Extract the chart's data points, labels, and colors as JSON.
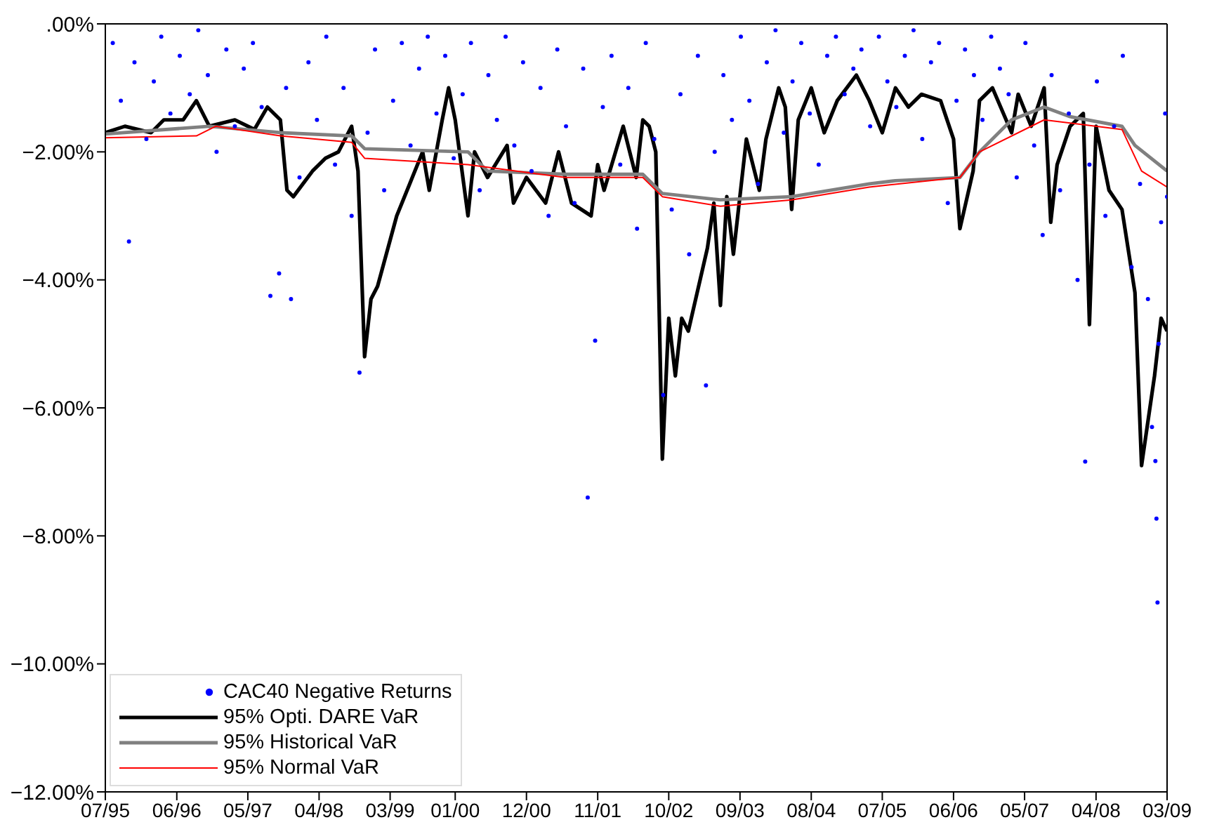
{
  "chart_data": {
    "type": "line",
    "xlim": [
      "1995-07",
      "2009-03"
    ],
    "xticks": [
      {
        "value": "1995-07",
        "label": "07/95"
      },
      {
        "value": "1996-06",
        "label": "06/96"
      },
      {
        "value": "1997-05",
        "label": "05/97"
      },
      {
        "value": "1998-04",
        "label": "04/98"
      },
      {
        "value": "1999-03",
        "label": "03/99"
      },
      {
        "value": "2000-01",
        "label": "01/00"
      },
      {
        "value": "2000-12",
        "label": "12/00"
      },
      {
        "value": "2001-11",
        "label": "11/01"
      },
      {
        "value": "2002-10",
        "label": "10/02"
      },
      {
        "value": "2003-09",
        "label": "09/03"
      },
      {
        "value": "2004-08",
        "label": "08/04"
      },
      {
        "value": "2005-07",
        "label": "07/05"
      },
      {
        "value": "2006-06",
        "label": "06/06"
      },
      {
        "value": "2007-05",
        "label": "05/07"
      },
      {
        "value": "2008-04",
        "label": "04/08"
      },
      {
        "value": "2009-03",
        "label": "03/09"
      }
    ],
    "ylim": [
      -12,
      0
    ],
    "yticks": [
      {
        "value": -12,
        "label": "−12.00%"
      },
      {
        "value": -10,
        "label": "−10.00%"
      },
      {
        "value": -8,
        "label": "−8.00%"
      },
      {
        "value": -6,
        "label": "−6.00%"
      },
      {
        "value": -4,
        "label": "−4.00%"
      },
      {
        "value": -2,
        "label": "−2.00%"
      },
      {
        "value": 0,
        "label": ".00%"
      }
    ],
    "grid": false,
    "legend": "bottom left",
    "series": [
      {
        "name": "CAC40 Negative Returns",
        "type": "scatter",
        "marker": "circle",
        "color": "#0000ff",
        "x": [
          "1995-08-05",
          "1995-09-12",
          "1995-10-20",
          "1995-11-15",
          "1996-01-10",
          "1996-02-14",
          "1996-03-20",
          "1996-05-02",
          "1996-06-15",
          "1996-08-01",
          "1996-09-10",
          "1996-10-25",
          "1996-12-05",
          "1997-01-20",
          "1997-03-01",
          "1997-04-12",
          "1997-05-25",
          "1997-07-05",
          "1997-08-15",
          "1997-09-25",
          "1997-10-28",
          "1997-11-20",
          "1997-12-30",
          "1998-02-10",
          "1998-03-22",
          "1998-05-05",
          "1998-06-15",
          "1998-07-25",
          "1998-09-01",
          "1998-10-08",
          "1998-11-15",
          "1998-12-20",
          "1999-02-01",
          "1999-03-15",
          "1999-04-25",
          "1999-06-05",
          "1999-07-15",
          "1999-08-25",
          "1999-10-05",
          "1999-11-15",
          "1999-12-25",
          "2000-02-05",
          "2000-03-15",
          "2000-04-25",
          "2000-06-05",
          "2000-07-15",
          "2000-08-25",
          "2000-10-05",
          "2000-11-15",
          "2000-12-25",
          "2001-02-05",
          "2001-03-15",
          "2001-04-25",
          "2001-06-05",
          "2001-07-15",
          "2001-08-25",
          "2001-09-15",
          "2001-10-20",
          "2001-11-25",
          "2002-01-05",
          "2002-02-15",
          "2002-03-25",
          "2002-05-05",
          "2002-06-15",
          "2002-07-25",
          "2002-09-05",
          "2002-10-15",
          "2002-11-25",
          "2003-01-05",
          "2003-02-15",
          "2003-03-25",
          "2003-05-05",
          "2003-06-15",
          "2003-07-25",
          "2003-09-05",
          "2003-10-15",
          "2003-11-25",
          "2004-01-05",
          "2004-02-15",
          "2004-03-25",
          "2004-05-05",
          "2004-06-15",
          "2004-07-25",
          "2004-09-05",
          "2004-10-15",
          "2004-11-25",
          "2005-01-05",
          "2005-02-15",
          "2005-03-25",
          "2005-05-05",
          "2005-06-15",
          "2005-07-25",
          "2005-09-05",
          "2005-10-15",
          "2005-11-25",
          "2006-01-05",
          "2006-02-15",
          "2006-03-25",
          "2006-05-05",
          "2006-06-15",
          "2006-07-25",
          "2006-09-05",
          "2006-10-15",
          "2006-11-25",
          "2007-01-05",
          "2007-02-15",
          "2007-03-25",
          "2007-05-05",
          "2007-06-15",
          "2007-07-25",
          "2007-09-05",
          "2007-10-15",
          "2007-11-25",
          "2008-01-05",
          "2008-02-10",
          "2008-03-01",
          "2008-04-05",
          "2008-05-15",
          "2008-06-25",
          "2008-08-05",
          "2008-09-15",
          "2008-10-25",
          "2008-12-01",
          "2008-12-20",
          "2009-01-05",
          "2009-01-10",
          "2009-01-15",
          "2009-01-20",
          "2009-02-01",
          "2009-02-20",
          "2009-03-01"
        ],
        "values": [
          -0.3,
          -1.2,
          -3.4,
          -0.6,
          -1.8,
          -0.9,
          -0.2,
          -1.4,
          -0.5,
          -1.1,
          -0.1,
          -0.8,
          -2.0,
          -0.4,
          -1.6,
          -0.7,
          -0.3,
          -1.3,
          -4.25,
          -3.9,
          -1.0,
          -4.3,
          -2.4,
          -0.6,
          -1.5,
          -0.2,
          -2.2,
          -1.0,
          -3.0,
          -5.45,
          -1.7,
          -0.4,
          -2.6,
          -1.2,
          -0.3,
          -1.9,
          -0.7,
          -0.2,
          -1.4,
          -0.5,
          -2.1,
          -1.1,
          -0.3,
          -2.6,
          -0.8,
          -1.5,
          -0.2,
          -1.9,
          -0.6,
          -2.3,
          -1.0,
          -3.0,
          -0.4,
          -1.6,
          -2.8,
          -0.7,
          -7.4,
          -4.95,
          -1.3,
          -0.5,
          -2.2,
          -1.0,
          -3.2,
          -0.3,
          -1.8,
          -5.8,
          -2.9,
          -1.1,
          -3.6,
          -0.5,
          -5.65,
          -2.0,
          -0.8,
          -1.5,
          -0.2,
          -1.2,
          -2.5,
          -0.6,
          -0.1,
          -1.7,
          -0.9,
          -0.3,
          -1.4,
          -2.2,
          -0.5,
          -0.2,
          -1.1,
          -0.7,
          -0.4,
          -1.6,
          -0.2,
          -0.9,
          -1.3,
          -0.5,
          -0.1,
          -1.8,
          -0.6,
          -0.3,
          -2.8,
          -1.2,
          -0.4,
          -0.8,
          -1.5,
          -0.2,
          -0.7,
          -1.1,
          -2.4,
          -0.3,
          -1.9,
          -3.3,
          -0.8,
          -2.6,
          -1.4,
          -4.0,
          -6.84,
          -2.2,
          -0.9,
          -3.0,
          -1.6,
          -0.5,
          -3.8,
          -2.5,
          -4.3,
          -6.3,
          -6.83,
          -7.73,
          -9.04,
          -5.0,
          -3.1,
          -1.4,
          -2.7
        ]
      },
      {
        "name": "95% Opti. DARE VaR",
        "color": "#000000",
        "x": [
          "1995-07",
          "1995-10",
          "1996-02",
          "1996-04",
          "1996-07",
          "1996-09",
          "1996-11",
          "1997-03",
          "1997-06",
          "1997-08",
          "1997-10",
          "1997-11",
          "1997-12",
          "1998-03",
          "1998-05",
          "1998-07",
          "1998-09",
          "1998-10",
          "1998-11",
          "1998-12",
          "1999-01",
          "1999-04",
          "1999-06",
          "1999-08",
          "1999-09",
          "1999-11",
          "1999-12",
          "2000-01",
          "2000-03",
          "2000-04",
          "2000-06",
          "2000-09",
          "2000-10",
          "2000-12",
          "2001-03",
          "2001-05",
          "2001-07",
          "2001-10",
          "2001-11",
          "2001-12",
          "2002-03",
          "2002-05",
          "2002-06",
          "2002-07",
          "2002-08",
          "2002-09",
          "2002-10",
          "2002-11",
          "2002-12",
          "2003-01",
          "2003-04",
          "2003-05",
          "2003-06",
          "2003-07",
          "2003-08",
          "2003-10",
          "2003-12",
          "2004-01",
          "2004-03",
          "2004-04",
          "2004-05",
          "2004-06",
          "2004-08",
          "2004-10",
          "2004-12",
          "2005-03",
          "2005-05",
          "2005-07",
          "2005-09",
          "2005-11",
          "2006-01",
          "2006-04",
          "2006-06",
          "2006-07",
          "2006-09",
          "2006-10",
          "2006-12",
          "2007-03",
          "2007-04",
          "2007-06",
          "2007-08",
          "2007-09",
          "2007-10",
          "2007-12",
          "2008-02",
          "2008-03",
          "2008-04",
          "2008-06",
          "2008-08",
          "2008-10",
          "2008-11",
          "2009-01",
          "2009-02",
          "2009-03"
        ],
        "values": [
          -1.7,
          -1.6,
          -1.7,
          -1.5,
          -1.5,
          -1.2,
          -1.6,
          -1.5,
          -1.65,
          -1.3,
          -1.5,
          -2.6,
          -2.7,
          -2.3,
          -2.1,
          -2.0,
          -1.6,
          -2.3,
          -5.2,
          -4.3,
          -4.1,
          -3.0,
          -2.5,
          -2.0,
          -2.6,
          -1.5,
          -1.0,
          -1.5,
          -3.0,
          -2.0,
          -2.4,
          -1.9,
          -2.8,
          -2.4,
          -2.8,
          -2.0,
          -2.8,
          -3.0,
          -2.2,
          -2.6,
          -1.6,
          -2.4,
          -1.5,
          -1.6,
          -2.0,
          -6.8,
          -4.6,
          -5.5,
          -4.6,
          -4.8,
          -3.5,
          -2.8,
          -4.4,
          -2.7,
          -3.6,
          -1.8,
          -2.6,
          -1.8,
          -1.0,
          -1.3,
          -2.9,
          -1.5,
          -1.0,
          -1.7,
          -1.2,
          -0.8,
          -1.2,
          -1.7,
          -1.0,
          -1.3,
          -1.1,
          -1.2,
          -1.8,
          -3.2,
          -2.3,
          -1.2,
          -1.0,
          -1.7,
          -1.1,
          -1.6,
          -1.0,
          -3.1,
          -2.2,
          -1.6,
          -1.4,
          -4.7,
          -1.6,
          -2.6,
          -2.9,
          -4.2,
          -6.9,
          -5.5,
          -4.6,
          -4.8
        ]
      },
      {
        "name": "95% Historical VaR",
        "color": "#808080",
        "x": [
          "1995-07",
          "1996-11",
          "1997-10",
          "1998-09",
          "1998-11",
          "2000-03",
          "2000-06",
          "2001-06",
          "2002-06",
          "2002-09",
          "2003-06",
          "2004-05",
          "2005-05",
          "2005-09",
          "2006-07",
          "2006-10",
          "2007-03",
          "2007-08",
          "2007-12",
          "2008-08",
          "2008-10",
          "2009-03"
        ],
        "values": [
          -1.72,
          -1.6,
          -1.7,
          -1.75,
          -1.95,
          -2.0,
          -2.3,
          -2.35,
          -2.35,
          -2.65,
          -2.75,
          -2.7,
          -2.5,
          -2.45,
          -2.4,
          -2.0,
          -1.5,
          -1.3,
          -1.45,
          -1.6,
          -1.9,
          -2.3
        ]
      },
      {
        "name": "95% Normal VaR",
        "color": "#ff0000",
        "x": [
          "1995-07",
          "1996-09",
          "1996-12",
          "1997-10",
          "1998-09",
          "1998-11",
          "2000-03",
          "2001-06",
          "2002-06",
          "2002-09",
          "2003-06",
          "2004-05",
          "2005-05",
          "2006-07",
          "2006-10",
          "2007-08",
          "2008-08",
          "2008-11",
          "2009-03"
        ],
        "values": [
          -1.78,
          -1.75,
          -1.6,
          -1.75,
          -1.85,
          -2.1,
          -2.2,
          -2.4,
          -2.4,
          -2.7,
          -2.85,
          -2.75,
          -2.55,
          -2.4,
          -2.0,
          -1.5,
          -1.65,
          -2.3,
          -2.55
        ]
      }
    ]
  }
}
